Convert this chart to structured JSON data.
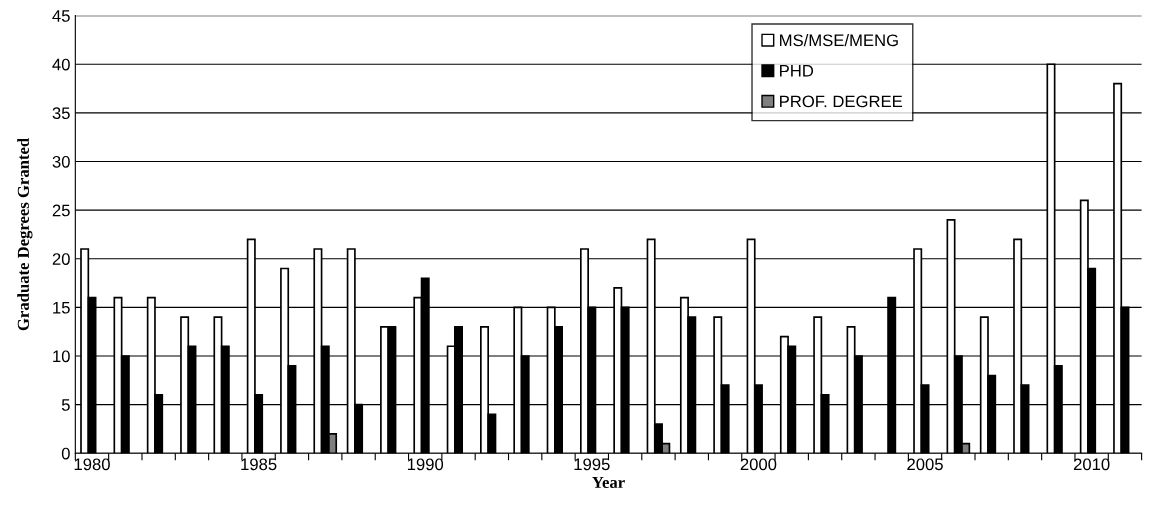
{
  "chart_data": {
    "type": "bar",
    "xlabel": "Year",
    "ylabel": "Graduate Degrees Granted",
    "categories": [
      "1980",
      null,
      null,
      null,
      null,
      "1985",
      null,
      null,
      null,
      null,
      "1990",
      null,
      null,
      null,
      null,
      "1995",
      null,
      null,
      null,
      null,
      "2000",
      null,
      null,
      null,
      null,
      "2005",
      null,
      null,
      null,
      null,
      "2010",
      null
    ],
    "series": [
      {
        "name": "MS/MSE/MENG",
        "color": "#ffffff",
        "values": [
          21,
          16,
          16,
          14,
          14,
          22,
          19,
          21,
          21,
          13,
          16,
          11,
          13,
          15,
          15,
          21,
          17,
          22,
          16,
          14,
          22,
          12,
          14,
          13,
          null,
          21,
          24,
          14,
          22,
          40,
          26,
          38
        ]
      },
      {
        "name": "PHD",
        "color": "#000000",
        "values": [
          16,
          10,
          6,
          11,
          11,
          6,
          9,
          11,
          5,
          13,
          18,
          13,
          4,
          10,
          13,
          15,
          15,
          3,
          14,
          7,
          7,
          11,
          6,
          10,
          16,
          7,
          10,
          8,
          7,
          9,
          19,
          15
        ]
      },
      {
        "name": "PROF. DEGREE",
        "color": "#7f7f7f",
        "values": [
          null,
          null,
          null,
          null,
          null,
          null,
          null,
          2,
          null,
          null,
          null,
          null,
          null,
          null,
          null,
          null,
          null,
          1,
          null,
          null,
          null,
          null,
          null,
          null,
          null,
          null,
          1,
          null,
          null,
          null,
          null,
          null
        ]
      }
    ],
    "ylim": [
      0,
      45
    ],
    "yticks": [
      0,
      5,
      10,
      15,
      20,
      25,
      30,
      35,
      40,
      45
    ],
    "grid": "y",
    "legend": "top"
  }
}
